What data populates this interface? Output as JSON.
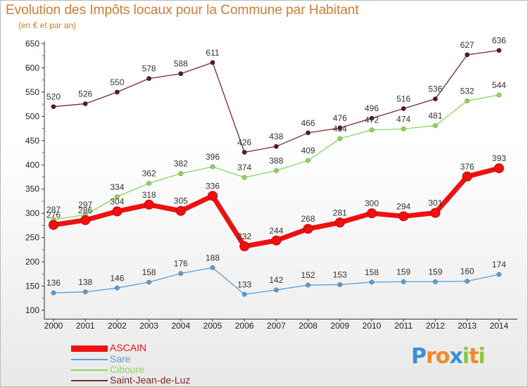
{
  "header": {
    "title": "Evolution des Impôts locaux pour la Commune par Habitant",
    "subtitle": "(en € et par an)"
  },
  "legend": [
    {
      "name": "ASCAIN",
      "color": "#ee1111"
    },
    {
      "name": "Sare",
      "color": "#5a9fd4"
    },
    {
      "name": "Ciboure",
      "color": "#8cd65a"
    },
    {
      "name": "Saint-Jean-de-Luz",
      "color": "#7a2a2a"
    }
  ],
  "logo": {
    "letters": [
      "P",
      "r",
      "o",
      "x",
      "i",
      "t",
      "i"
    ],
    "colors": [
      "#3a8fd9",
      "#f08a24",
      "#f08a24",
      "#3a8fd9",
      "#8cc63f",
      "#f08a24",
      "#8cc63f"
    ]
  },
  "chart_data": {
    "type": "line",
    "title": "Evolution des Impôts locaux pour la Commune par Habitant",
    "subtitle": "(en € et par an)",
    "x": [
      "2000",
      "2001",
      "2002",
      "2003",
      "2004",
      "2005",
      "2006",
      "2007",
      "2008",
      "2009",
      "2010",
      "2011",
      "2012",
      "2013",
      "2014"
    ],
    "yticks": [
      100,
      150,
      200,
      250,
      300,
      350,
      400,
      450,
      500,
      550,
      600,
      650
    ],
    "ylim": [
      100,
      650
    ],
    "grid": false,
    "legend_position": "bottom-left",
    "series": [
      {
        "name": "ASCAIN",
        "color": "#ee1111",
        "values": [
          276,
          286,
          304,
          318,
          305,
          336,
          232,
          244,
          268,
          281,
          300,
          294,
          301,
          376,
          393
        ],
        "labels": [
          "276",
          "286",
          "304",
          "318",
          "305",
          "336",
          "232",
          "244",
          "268",
          "281",
          "300",
          "294",
          "301",
          "376",
          "393"
        ]
      },
      {
        "name": "Sare",
        "color": "#5a9fd4",
        "values": [
          136,
          138,
          146,
          158,
          176,
          188,
          133,
          142,
          152,
          153,
          158,
          159,
          159,
          160,
          174
        ],
        "labels": [
          "136",
          "138",
          "146",
          "158",
          "176",
          "188",
          "133",
          "142",
          "152",
          "153",
          "158",
          "159",
          "159",
          "160",
          "174"
        ]
      },
      {
        "name": "Ciboure",
        "color": "#8cd65a",
        "values": [
          287,
          297,
          334,
          362,
          382,
          396,
          374,
          388,
          409,
          454,
          472,
          474,
          481,
          532,
          544
        ],
        "labels": [
          "287",
          "297",
          "334",
          "362",
          "382",
          "396",
          "374",
          "388",
          "409",
          "454",
          "472",
          "474",
          "481",
          "532",
          "544"
        ]
      },
      {
        "name": "Saint-Jean-de-Luz",
        "color": "#7a2a2a",
        "values": [
          520,
          526,
          550,
          578,
          588,
          611,
          426,
          438,
          466,
          476,
          496,
          516,
          536,
          627,
          636
        ],
        "labels": [
          "520",
          "526",
          "550",
          "578",
          "588",
          "611",
          "426",
          "438",
          "466",
          "476",
          "496",
          "516",
          "536",
          "627",
          "636"
        ]
      }
    ]
  }
}
